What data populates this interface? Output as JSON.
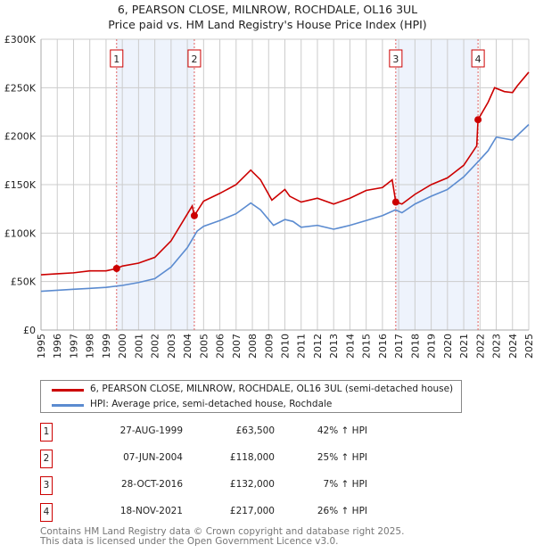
{
  "chart_data": {
    "type": "line",
    "title": "6, PEARSON CLOSE, MILNROW, ROCHDALE, OL16 3UL",
    "subtitle": "Price paid vs. HM Land Registry's House Price Index (HPI)",
    "xlim": [
      1995,
      2025
    ],
    "ylim": [
      0,
      300000
    ],
    "y_ticks": [
      {
        "v": 0,
        "label": "£0"
      },
      {
        "v": 50000,
        "label": "£50K"
      },
      {
        "v": 100000,
        "label": "£100K"
      },
      {
        "v": 150000,
        "label": "£150K"
      },
      {
        "v": 200000,
        "label": "£200K"
      },
      {
        "v": 250000,
        "label": "£250K"
      },
      {
        "v": 300000,
        "label": "£300K"
      }
    ],
    "x_ticks": [
      "1995",
      "1996",
      "1997",
      "1998",
      "1999",
      "2000",
      "2001",
      "2002",
      "2003",
      "2004",
      "2005",
      "2006",
      "2007",
      "2008",
      "2009",
      "2010",
      "2011",
      "2012",
      "2013",
      "2014",
      "2015",
      "2016",
      "2017",
      "2018",
      "2019",
      "2020",
      "2021",
      "2022",
      "2023",
      "2024",
      "2025"
    ],
    "grid": true,
    "series": [
      {
        "name": "6, PEARSON CLOSE, MILNROW, ROCHDALE, OL16 3UL (semi-detached house)",
        "color": "#cc0000",
        "points": [
          [
            1995,
            57000
          ],
          [
            1996,
            58000
          ],
          [
            1997,
            59000
          ],
          [
            1998,
            61000
          ],
          [
            1999,
            61000
          ],
          [
            1999.65,
            63500
          ],
          [
            2000,
            66000
          ],
          [
            2001,
            69000
          ],
          [
            2002,
            75000
          ],
          [
            2003,
            92000
          ],
          [
            2004.3,
            128000
          ],
          [
            2004.43,
            118000
          ],
          [
            2005,
            133000
          ],
          [
            2006,
            141000
          ],
          [
            2007,
            150000
          ],
          [
            2007.9,
            165000
          ],
          [
            2008.5,
            155000
          ],
          [
            2009.2,
            134000
          ],
          [
            2010,
            145000
          ],
          [
            2010.3,
            138000
          ],
          [
            2011,
            132000
          ],
          [
            2012,
            136000
          ],
          [
            2013,
            130000
          ],
          [
            2014,
            136000
          ],
          [
            2015,
            144000
          ],
          [
            2016,
            147000
          ],
          [
            2016.6,
            155000
          ],
          [
            2016.82,
            132000
          ],
          [
            2017.2,
            130000
          ],
          [
            2018,
            140000
          ],
          [
            2019,
            150000
          ],
          [
            2020,
            157000
          ],
          [
            2021,
            170000
          ],
          [
            2021.8,
            190000
          ],
          [
            2021.88,
            217000
          ],
          [
            2022.5,
            235000
          ],
          [
            2022.9,
            250000
          ],
          [
            2023.5,
            246000
          ],
          [
            2024,
            245000
          ],
          [
            2024.3,
            252000
          ],
          [
            2025,
            266000
          ]
        ]
      },
      {
        "name": "HPI: Average price, semi-detached house, Rochdale",
        "color": "#5b8bd0",
        "points": [
          [
            1995,
            40000
          ],
          [
            1996,
            41000
          ],
          [
            1997,
            42000
          ],
          [
            1998,
            43000
          ],
          [
            1999,
            44000
          ],
          [
            2000,
            46000
          ],
          [
            2001,
            49000
          ],
          [
            2002,
            53000
          ],
          [
            2003,
            65000
          ],
          [
            2004,
            85000
          ],
          [
            2004.6,
            102000
          ],
          [
            2005,
            107000
          ],
          [
            2006,
            113000
          ],
          [
            2007,
            120000
          ],
          [
            2007.9,
            131000
          ],
          [
            2008.5,
            124000
          ],
          [
            2009.3,
            108000
          ],
          [
            2010,
            114000
          ],
          [
            2010.5,
            112000
          ],
          [
            2011,
            106000
          ],
          [
            2012,
            108000
          ],
          [
            2013,
            104000
          ],
          [
            2014,
            108000
          ],
          [
            2015,
            113000
          ],
          [
            2016,
            118000
          ],
          [
            2016.8,
            124000
          ],
          [
            2017.2,
            121000
          ],
          [
            2018,
            130000
          ],
          [
            2019,
            138000
          ],
          [
            2020,
            145000
          ],
          [
            2021,
            158000
          ],
          [
            2021.9,
            174000
          ],
          [
            2022.5,
            185000
          ],
          [
            2023,
            199000
          ],
          [
            2024,
            196000
          ],
          [
            2025,
            212000
          ]
        ]
      }
    ],
    "sales": [
      {
        "n": "1",
        "x": 1999.65,
        "date": "27-AUG-1999",
        "price": 63500,
        "price_label": "£63,500",
        "hpi": "42% ↑ HPI"
      },
      {
        "n": "2",
        "x": 2004.43,
        "date": "07-JUN-2004",
        "price": 118000,
        "price_label": "£118,000",
        "hpi": "25% ↑ HPI"
      },
      {
        "n": "3",
        "x": 2016.82,
        "date": "28-OCT-2016",
        "price": 132000,
        "price_label": "£132,000",
        "hpi": "7% ↑ HPI"
      },
      {
        "n": "4",
        "x": 2021.88,
        "date": "18-NOV-2021",
        "price": 217000,
        "price_label": "£217,000",
        "hpi": "26% ↑ HPI"
      }
    ],
    "shaded": [
      [
        1999.65,
        2004.43
      ],
      [
        2016.82,
        2021.88
      ]
    ]
  },
  "footer": [
    "Contains HM Land Registry data © Crown copyright and database right 2025.",
    "This data is licensed under the Open Government Licence v3.0."
  ]
}
